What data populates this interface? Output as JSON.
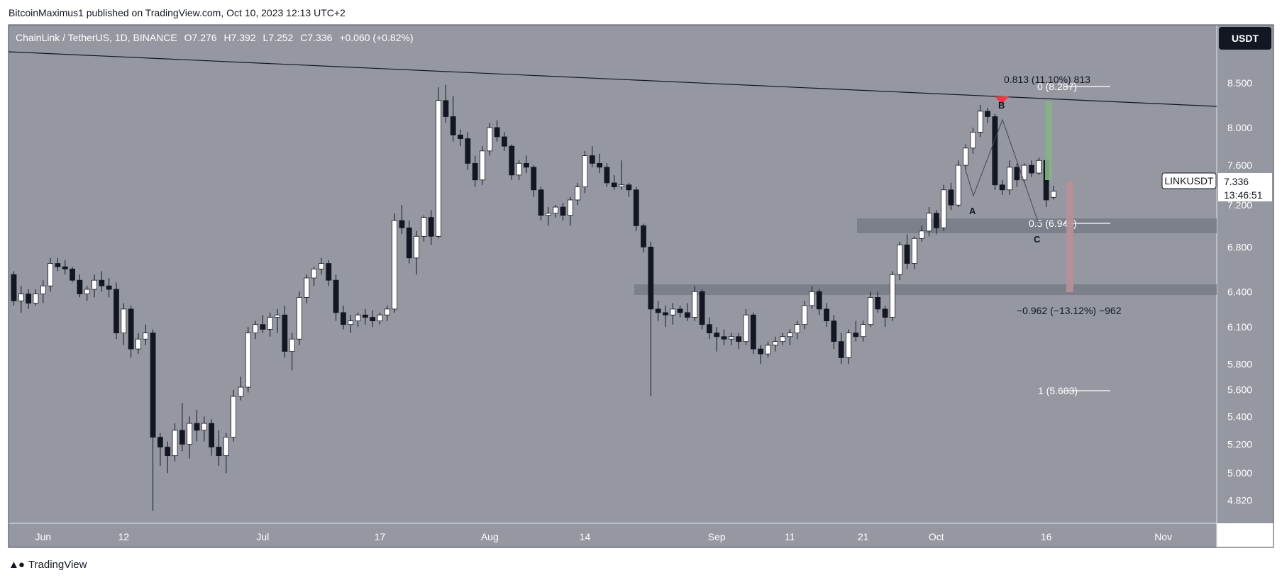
{
  "header": {
    "publisher": "BitcoinMaximus1 published on TradingView.com, Oct 10, 2023 12:13 UTC+2"
  },
  "legend": {
    "symbol": "ChainLink / TetherUS, 1D, BINANCE",
    "o_label": "O",
    "o_value": "7.276",
    "h_label": "H",
    "h_value": "7.392",
    "l_label": "L",
    "l_value": "7.252",
    "c_label": "C",
    "c_value": "7.336",
    "change": "+0.060 (+0.82%)"
  },
  "currency_button": "USDT",
  "price_tag": {
    "symbol": "LINKUSDT",
    "price": "7.336",
    "countdown": "13:46:51"
  },
  "colors": {
    "background": "#9598a1",
    "up_body": "#ffffff",
    "down_body": "#131722",
    "wick": "#131722",
    "zone": "#787b86",
    "target_up": "#88b08a",
    "target_down": "#b88f96",
    "marker": "#f23645"
  },
  "annotations": {
    "fib_top": "0 (8.287)",
    "fib_mid": "0.5 (6.945)",
    "fib_bottom": "1 (5.603)",
    "measure_up": "0.813 (11.10%) 813",
    "measure_down": "−0.962 (−13.12%) −962",
    "label_a": "A",
    "label_b": "B",
    "label_c": "C"
  },
  "footer": {
    "brand": "TradingView"
  },
  "chart_data": {
    "type": "candlestick",
    "title": "ChainLink / TetherUS, 1D, BINANCE",
    "yscale": "log",
    "ylim": [
      4.72,
      8.75
    ],
    "y_ticks": [
      "8.500",
      "8.000",
      "7.600",
      "7.200",
      "6.800",
      "6.400",
      "6.100",
      "5.800",
      "5.600",
      "5.400",
      "5.200",
      "5.000",
      "4.820"
    ],
    "x_ticks": [
      {
        "label": "Jun",
        "date": "2023-06-01"
      },
      {
        "label": "12",
        "date": "2023-06-12"
      },
      {
        "label": "Jul",
        "date": "2023-07-01"
      },
      {
        "label": "17",
        "date": "2023-07-17"
      },
      {
        "label": "Aug",
        "date": "2023-08-01"
      },
      {
        "label": "14",
        "date": "2023-08-14"
      },
      {
        "label": "Sep",
        "date": "2023-09-01"
      },
      {
        "label": "11",
        "date": "2023-09-11"
      },
      {
        "label": "21",
        "date": "2023-09-21"
      },
      {
        "label": "Oct",
        "date": "2023-10-01"
      },
      {
        "label": "16",
        "date": "2023-10-16"
      },
      {
        "label": "Nov",
        "date": "2023-11-01"
      }
    ],
    "first_date": "2023-05-28",
    "candles": [
      [
        6.55,
        6.58,
        6.28,
        6.32
      ],
      [
        6.32,
        6.45,
        6.22,
        6.38
      ],
      [
        6.38,
        6.42,
        6.25,
        6.3
      ],
      [
        6.3,
        6.42,
        6.28,
        6.38
      ],
      [
        6.38,
        6.5,
        6.3,
        6.45
      ],
      [
        6.45,
        6.7,
        6.4,
        6.65
      ],
      [
        6.65,
        6.7,
        6.58,
        6.62
      ],
      [
        6.62,
        6.68,
        6.55,
        6.6
      ],
      [
        6.6,
        6.62,
        6.48,
        6.5
      ],
      [
        6.5,
        6.55,
        6.35,
        6.38
      ],
      [
        6.38,
        6.45,
        6.32,
        6.42
      ],
      [
        6.42,
        6.55,
        6.35,
        6.5
      ],
      [
        6.5,
        6.58,
        6.4,
        6.45
      ],
      [
        6.45,
        6.52,
        6.35,
        6.42
      ],
      [
        6.42,
        6.48,
        6.0,
        6.05
      ],
      [
        6.05,
        6.3,
        5.95,
        6.25
      ],
      [
        6.25,
        6.28,
        5.85,
        5.92
      ],
      [
        5.92,
        6.05,
        5.88,
        6.0
      ],
      [
        6.0,
        6.12,
        5.95,
        6.05
      ],
      [
        6.05,
        6.08,
        4.75,
        5.25
      ],
      [
        5.25,
        5.28,
        5.05,
        5.18
      ],
      [
        5.18,
        5.22,
        5.0,
        5.12
      ],
      [
        5.12,
        5.35,
        5.08,
        5.3
      ],
      [
        5.3,
        5.5,
        5.15,
        5.2
      ],
      [
        5.2,
        5.4,
        5.1,
        5.35
      ],
      [
        5.35,
        5.45,
        5.22,
        5.3
      ],
      [
        5.3,
        5.4,
        5.22,
        5.35
      ],
      [
        5.35,
        5.38,
        5.12,
        5.18
      ],
      [
        5.18,
        5.3,
        5.05,
        5.12
      ],
      [
        5.12,
        5.28,
        5.0,
        5.25
      ],
      [
        5.25,
        5.6,
        5.22,
        5.55
      ],
      [
        5.55,
        5.7,
        5.52,
        5.62
      ],
      [
        5.62,
        6.1,
        5.58,
        6.05
      ],
      [
        6.05,
        6.15,
        6.0,
        6.12
      ],
      [
        6.12,
        6.2,
        6.05,
        6.08
      ],
      [
        6.08,
        6.22,
        6.02,
        6.18
      ],
      [
        6.18,
        6.25,
        6.05,
        6.2
      ],
      [
        6.2,
        6.28,
        5.85,
        5.9
      ],
      [
        5.9,
        6.05,
        5.75,
        6.0
      ],
      [
        6.0,
        6.4,
        5.95,
        6.35
      ],
      [
        6.35,
        6.55,
        6.3,
        6.52
      ],
      [
        6.52,
        6.62,
        6.45,
        6.6
      ],
      [
        6.6,
        6.7,
        6.55,
        6.65
      ],
      [
        6.65,
        6.68,
        6.45,
        6.5
      ],
      [
        6.5,
        6.55,
        6.15,
        6.22
      ],
      [
        6.22,
        6.28,
        6.08,
        6.12
      ],
      [
        6.12,
        6.2,
        6.05,
        6.15
      ],
      [
        6.15,
        6.22,
        6.1,
        6.2
      ],
      [
        6.2,
        6.25,
        6.12,
        6.18
      ],
      [
        6.18,
        6.24,
        6.1,
        6.15
      ],
      [
        6.15,
        6.22,
        6.12,
        6.2
      ],
      [
        6.2,
        6.28,
        6.15,
        6.25
      ],
      [
        6.25,
        7.12,
        6.22,
        7.05
      ],
      [
        7.05,
        7.2,
        6.92,
        6.98
      ],
      [
        6.98,
        7.05,
        6.65,
        6.7
      ],
      [
        6.7,
        6.95,
        6.55,
        6.9
      ],
      [
        6.9,
        7.1,
        6.85,
        7.08
      ],
      [
        7.08,
        7.15,
        6.82,
        6.9
      ],
      [
        6.9,
        8.45,
        6.88,
        8.3
      ],
      [
        8.3,
        8.48,
        8.05,
        8.12
      ],
      [
        8.12,
        8.35,
        7.85,
        7.92
      ],
      [
        7.92,
        7.98,
        7.8,
        7.88
      ],
      [
        7.88,
        7.95,
        7.55,
        7.62
      ],
      [
        7.62,
        7.7,
        7.38,
        7.45
      ],
      [
        7.45,
        7.8,
        7.4,
        7.75
      ],
      [
        7.75,
        8.05,
        7.7,
        8.0
      ],
      [
        8.0,
        8.08,
        7.85,
        7.9
      ],
      [
        7.9,
        7.95,
        7.75,
        7.8
      ],
      [
        7.8,
        7.82,
        7.45,
        7.5
      ],
      [
        7.5,
        7.65,
        7.45,
        7.62
      ],
      [
        7.62,
        7.7,
        7.52,
        7.58
      ],
      [
        7.58,
        7.6,
        7.28,
        7.35
      ],
      [
        7.35,
        7.38,
        7.05,
        7.1
      ],
      [
        7.1,
        7.18,
        7.0,
        7.12
      ],
      [
        7.12,
        7.2,
        7.08,
        7.18
      ],
      [
        7.18,
        7.22,
        7.05,
        7.1
      ],
      [
        7.1,
        7.28,
        7.0,
        7.25
      ],
      [
        7.25,
        7.42,
        7.2,
        7.38
      ],
      [
        7.38,
        7.75,
        7.32,
        7.7
      ],
      [
        7.7,
        7.8,
        7.58,
        7.62
      ],
      [
        7.62,
        7.72,
        7.52,
        7.58
      ],
      [
        7.58,
        7.62,
        7.38,
        7.42
      ],
      [
        7.42,
        7.5,
        7.35,
        7.38
      ],
      [
        7.38,
        7.65,
        7.35,
        7.4
      ],
      [
        7.4,
        7.42,
        7.28,
        7.35
      ],
      [
        7.35,
        7.38,
        6.95,
        7.0
      ],
      [
        7.0,
        7.02,
        6.75,
        6.8
      ],
      [
        6.8,
        6.85,
        5.55,
        6.25
      ],
      [
        6.25,
        6.32,
        6.15,
        6.22
      ],
      [
        6.22,
        6.28,
        6.1,
        6.2
      ],
      [
        6.2,
        6.3,
        6.12,
        6.25
      ],
      [
        6.25,
        6.28,
        6.18,
        6.22
      ],
      [
        6.22,
        6.3,
        6.15,
        6.18
      ],
      [
        6.18,
        6.45,
        6.15,
        6.4
      ],
      [
        6.4,
        6.42,
        6.08,
        6.12
      ],
      [
        6.12,
        6.18,
        6.0,
        6.05
      ],
      [
        6.05,
        6.1,
        5.9,
        6.02
      ],
      [
        6.02,
        6.08,
        5.95,
        6.0
      ],
      [
        6.0,
        6.05,
        5.95,
        6.02
      ],
      [
        6.02,
        6.05,
        5.92,
        5.98
      ],
      [
        5.98,
        6.25,
        5.95,
        6.2
      ],
      [
        6.2,
        6.22,
        5.88,
        5.92
      ],
      [
        5.92,
        5.95,
        5.8,
        5.88
      ],
      [
        5.88,
        5.98,
        5.85,
        5.95
      ],
      [
        5.95,
        6.02,
        5.9,
        5.98
      ],
      [
        5.98,
        6.05,
        5.95,
        6.02
      ],
      [
        6.02,
        6.08,
        5.95,
        6.05
      ],
      [
        6.05,
        6.15,
        6.0,
        6.12
      ],
      [
        6.12,
        6.32,
        6.08,
        6.28
      ],
      [
        6.28,
        6.45,
        6.25,
        6.4
      ],
      [
        6.4,
        6.42,
        6.2,
        6.25
      ],
      [
        6.25,
        6.3,
        6.1,
        6.15
      ],
      [
        6.15,
        6.2,
        5.92,
        5.98
      ],
      [
        5.98,
        6.05,
        5.8,
        5.85
      ],
      [
        5.85,
        6.08,
        5.8,
        6.05
      ],
      [
        6.05,
        6.15,
        5.98,
        6.02
      ],
      [
        6.02,
        6.15,
        5.98,
        6.12
      ],
      [
        6.12,
        6.4,
        6.1,
        6.35
      ],
      [
        6.35,
        6.4,
        6.22,
        6.25
      ],
      [
        6.25,
        6.28,
        6.1,
        6.18
      ],
      [
        6.18,
        6.58,
        6.15,
        6.55
      ],
      [
        6.55,
        6.85,
        6.5,
        6.82
      ],
      [
        6.82,
        6.92,
        6.6,
        6.65
      ],
      [
        6.65,
        6.9,
        6.6,
        6.88
      ],
      [
        6.88,
        7.0,
        6.85,
        6.95
      ],
      [
        6.95,
        7.18,
        6.9,
        7.12
      ],
      [
        7.12,
        7.15,
        6.92,
        6.98
      ],
      [
        6.98,
        7.4,
        6.95,
        7.35
      ],
      [
        7.35,
        7.42,
        7.15,
        7.2
      ],
      [
        7.2,
        7.65,
        7.18,
        7.6
      ],
      [
        7.6,
        7.82,
        7.55,
        7.78
      ],
      [
        7.78,
        8.0,
        7.72,
        7.95
      ],
      [
        7.95,
        8.25,
        7.9,
        8.18
      ],
      [
        8.18,
        8.22,
        8.05,
        8.12
      ],
      [
        8.12,
        8.15,
        7.35,
        7.4
      ],
      [
        7.4,
        7.45,
        7.3,
        7.35
      ],
      [
        7.35,
        7.65,
        7.3,
        7.58
      ],
      [
        7.58,
        7.62,
        7.38,
        7.45
      ],
      [
        7.45,
        7.62,
        7.42,
        7.6
      ],
      [
        7.6,
        7.65,
        7.48,
        7.52
      ],
      [
        7.52,
        7.68,
        7.5,
        7.65
      ],
      [
        7.65,
        7.7,
        7.18,
        7.25
      ],
      [
        7.276,
        7.392,
        7.252,
        7.336
      ]
    ]
  }
}
